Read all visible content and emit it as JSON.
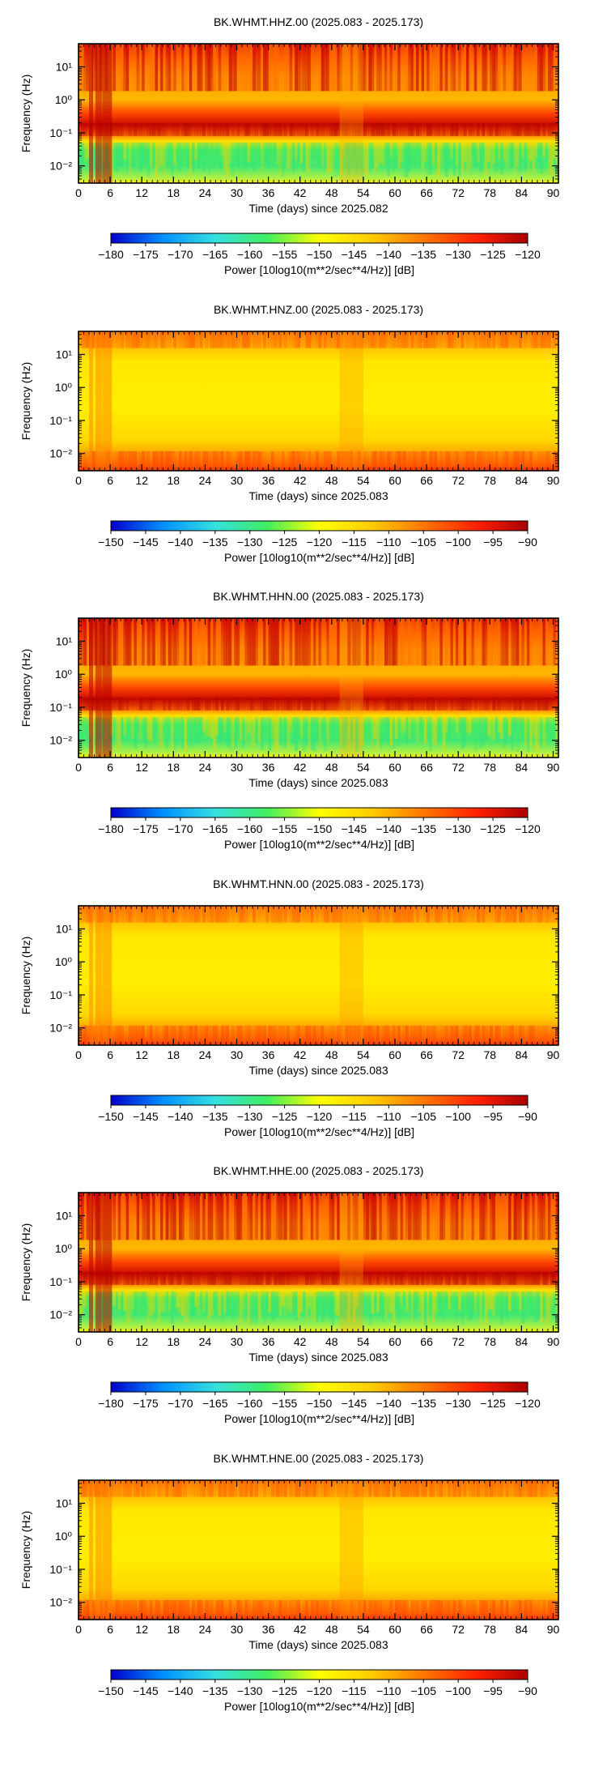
{
  "colorscale": {
    "stops": [
      "#0000cc",
      "#0090ff",
      "#35e0e0",
      "#40ee60",
      "#ffff00",
      "#ffcc00",
      "#ff7700",
      "#ff2200",
      "#aa0000"
    ]
  },
  "chart_data": [
    {
      "type": "heatmap",
      "title": "BK.WHMT.HHZ.00 (2025.083 - 2025.173)",
      "xlabel": "Time (days) since 2025.082",
      "ylabel": "Frequency (Hz)",
      "x_ticks": [
        "0",
        "6",
        "12",
        "18",
        "24",
        "30",
        "36",
        "42",
        "48",
        "54",
        "60",
        "66",
        "72",
        "78",
        "84",
        "90"
      ],
      "y_ticks": [
        "10¹",
        "10⁰",
        "10⁻¹",
        "10⁻²"
      ],
      "y_tick_values": [
        10,
        1,
        0.1,
        0.01
      ],
      "x_range": [
        0,
        91
      ],
      "y_range": [
        0.003,
        50
      ],
      "y_scale": "log",
      "colorbar_label": "Power [10log10(m**2/sec**4/Hz)] [dB]",
      "colorbar_ticks": [
        "−180",
        "−175",
        "−170",
        "−165",
        "−160",
        "−155",
        "−150",
        "−145",
        "−140",
        "−135",
        "−130",
        "−125",
        "−120"
      ],
      "clim": [
        -180,
        -120
      ]
    },
    {
      "type": "heatmap",
      "title": "BK.WHMT.HNZ.00 (2025.083 - 2025.173)",
      "xlabel": "Time (days) since 2025.083",
      "ylabel": "Frequency (Hz)",
      "x_ticks": [
        "0",
        "6",
        "12",
        "18",
        "24",
        "30",
        "36",
        "42",
        "48",
        "54",
        "60",
        "66",
        "72",
        "78",
        "84",
        "90"
      ],
      "y_ticks": [
        "10¹",
        "10⁰",
        "10⁻¹",
        "10⁻²"
      ],
      "y_tick_values": [
        10,
        1,
        0.1,
        0.01
      ],
      "x_range": [
        0,
        91
      ],
      "y_range": [
        0.003,
        50
      ],
      "y_scale": "log",
      "colorbar_label": "Power [10log10(m**2/sec**4/Hz)] [dB]",
      "colorbar_ticks": [
        "−150",
        "−145",
        "−140",
        "−135",
        "−130",
        "−125",
        "−120",
        "−115",
        "−110",
        "−105",
        "−100",
        "−95",
        "−90"
      ],
      "clim": [
        -150,
        -90
      ]
    },
    {
      "type": "heatmap",
      "title": "BK.WHMT.HHN.00 (2025.083 - 2025.173)",
      "xlabel": "Time (days) since 2025.083",
      "ylabel": "Frequency (Hz)",
      "x_ticks": [
        "0",
        "6",
        "12",
        "18",
        "24",
        "30",
        "36",
        "42",
        "48",
        "54",
        "60",
        "66",
        "72",
        "78",
        "84",
        "90"
      ],
      "y_ticks": [
        "10¹",
        "10⁰",
        "10⁻¹",
        "10⁻²"
      ],
      "y_tick_values": [
        10,
        1,
        0.1,
        0.01
      ],
      "x_range": [
        0,
        91
      ],
      "y_range": [
        0.003,
        50
      ],
      "y_scale": "log",
      "colorbar_label": "Power [10log10(m**2/sec**4/Hz)] [dB]",
      "colorbar_ticks": [
        "−180",
        "−175",
        "−170",
        "−165",
        "−160",
        "−155",
        "−150",
        "−145",
        "−140",
        "−135",
        "−130",
        "−125",
        "−120"
      ],
      "clim": [
        -180,
        -120
      ]
    },
    {
      "type": "heatmap",
      "title": "BK.WHMT.HNN.00 (2025.083 - 2025.173)",
      "xlabel": "Time (days) since 2025.083",
      "ylabel": "Frequency (Hz)",
      "x_ticks": [
        "0",
        "6",
        "12",
        "18",
        "24",
        "30",
        "36",
        "42",
        "48",
        "54",
        "60",
        "66",
        "72",
        "78",
        "84",
        "90"
      ],
      "y_ticks": [
        "10¹",
        "10⁰",
        "10⁻¹",
        "10⁻²"
      ],
      "y_tick_values": [
        10,
        1,
        0.1,
        0.01
      ],
      "x_range": [
        0,
        91
      ],
      "y_range": [
        0.003,
        50
      ],
      "y_scale": "log",
      "colorbar_label": "Power [10log10(m**2/sec**4/Hz)] [dB]",
      "colorbar_ticks": [
        "−150",
        "−145",
        "−140",
        "−135",
        "−130",
        "−125",
        "−120",
        "−115",
        "−110",
        "−105",
        "−100",
        "−95",
        "−90"
      ],
      "clim": [
        -150,
        -90
      ]
    },
    {
      "type": "heatmap",
      "title": "BK.WHMT.HHE.00 (2025.083 - 2025.173)",
      "xlabel": "Time (days) since 2025.083",
      "ylabel": "Frequency (Hz)",
      "x_ticks": [
        "0",
        "6",
        "12",
        "18",
        "24",
        "30",
        "36",
        "42",
        "48",
        "54",
        "60",
        "66",
        "72",
        "78",
        "84",
        "90"
      ],
      "y_ticks": [
        "10¹",
        "10⁰",
        "10⁻¹",
        "10⁻²"
      ],
      "y_tick_values": [
        10,
        1,
        0.1,
        0.01
      ],
      "x_range": [
        0,
        91
      ],
      "y_range": [
        0.003,
        50
      ],
      "y_scale": "log",
      "colorbar_label": "Power [10log10(m**2/sec**4/Hz)] [dB]",
      "colorbar_ticks": [
        "−180",
        "−175",
        "−170",
        "−165",
        "−160",
        "−155",
        "−150",
        "−145",
        "−140",
        "−135",
        "−130",
        "−125",
        "−120"
      ],
      "clim": [
        -180,
        -120
      ]
    },
    {
      "type": "heatmap",
      "title": "BK.WHMT.HNE.00 (2025.083 - 2025.173)",
      "xlabel": "Time (days) since 2025.083",
      "ylabel": "Frequency (Hz)",
      "x_ticks": [
        "0",
        "6",
        "12",
        "18",
        "24",
        "30",
        "36",
        "42",
        "48",
        "54",
        "60",
        "66",
        "72",
        "78",
        "84",
        "90"
      ],
      "y_ticks": [
        "10¹",
        "10⁰",
        "10⁻¹",
        "10⁻²"
      ],
      "y_tick_values": [
        10,
        1,
        0.1,
        0.01
      ],
      "x_range": [
        0,
        91
      ],
      "y_range": [
        0.003,
        50
      ],
      "y_scale": "log",
      "colorbar_label": "Power [10log10(m**2/sec**4/Hz)] [dB]",
      "colorbar_ticks": [
        "−150",
        "−145",
        "−140",
        "−135",
        "−130",
        "−125",
        "−120",
        "−115",
        "−110",
        "−105",
        "−100",
        "−95",
        "−90"
      ],
      "clim": [
        -150,
        -90
      ]
    }
  ]
}
